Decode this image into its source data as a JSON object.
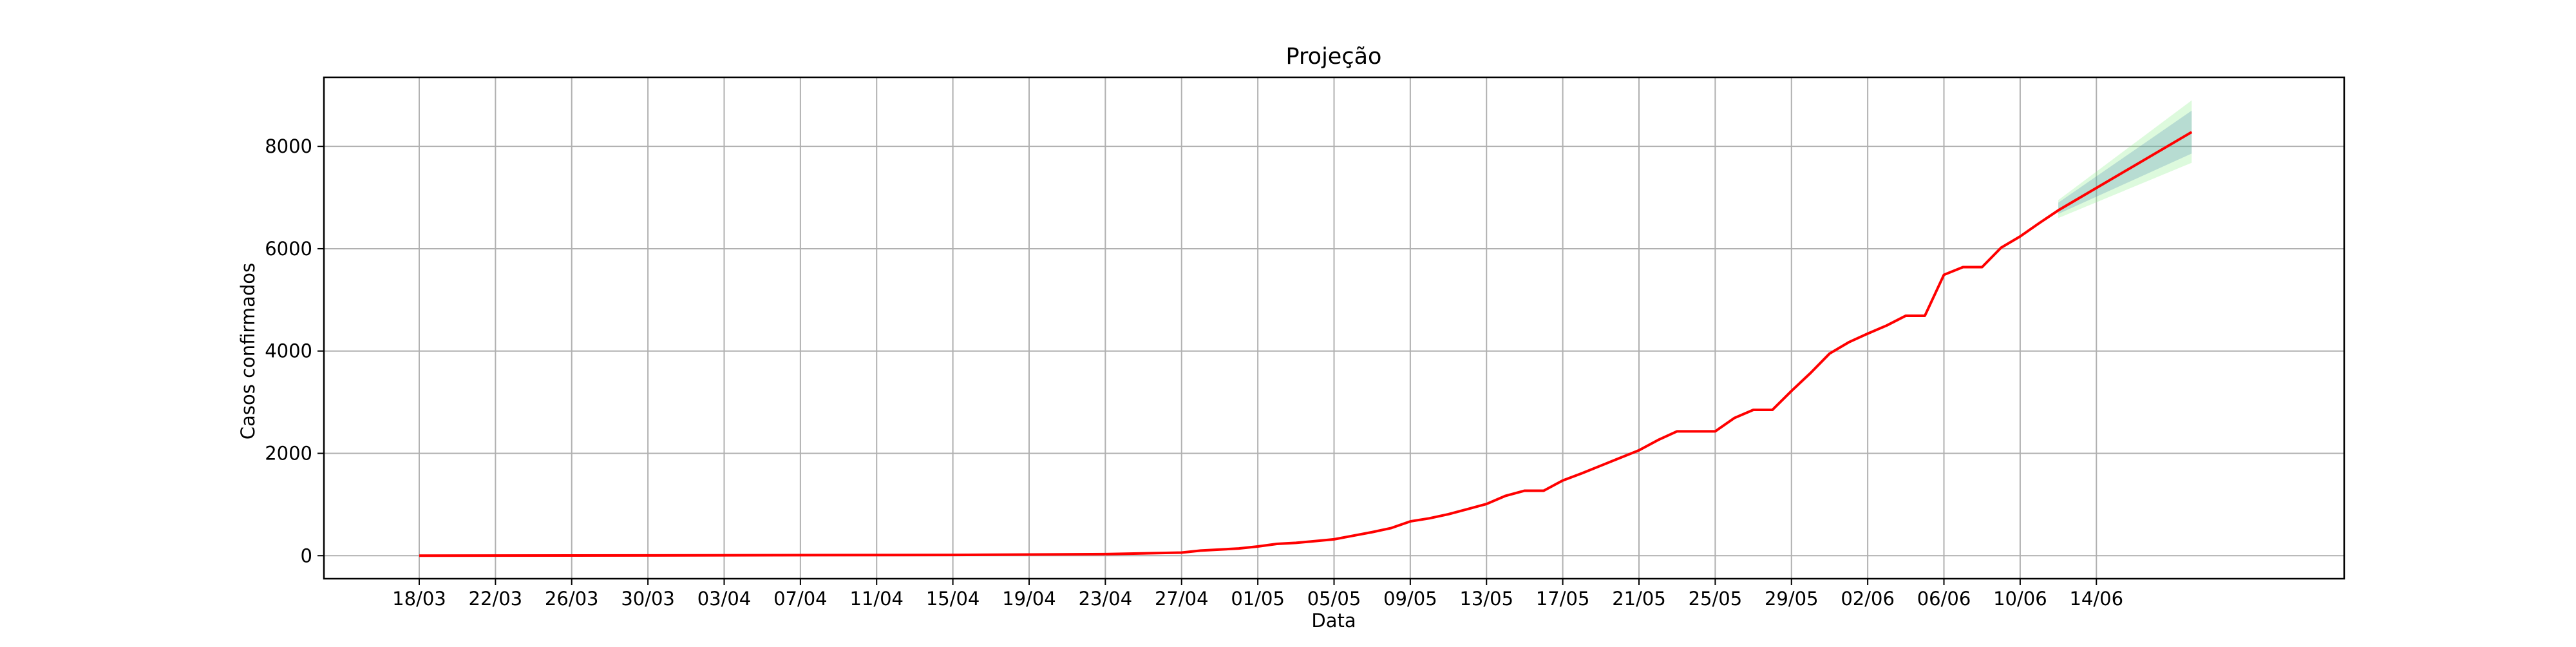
{
  "chart_data": {
    "type": "line",
    "title": "Projeção",
    "xlabel": "Data",
    "ylabel": "Casos confirmados",
    "grid": true,
    "xlim": [
      "2020-03-13",
      "2020-06-27"
    ],
    "ylim": [
      -450,
      9350
    ],
    "x_ticks": [
      "18/03",
      "22/03",
      "26/03",
      "30/03",
      "03/04",
      "07/04",
      "11/04",
      "15/04",
      "19/04",
      "23/04",
      "27/04",
      "01/05",
      "05/05",
      "09/05",
      "13/05",
      "17/05",
      "21/05",
      "25/05",
      "29/05",
      "02/06",
      "06/06",
      "10/06",
      "14/06"
    ],
    "y_ticks": [
      "0",
      "2000",
      "4000",
      "6000",
      "8000"
    ],
    "series": [
      {
        "color": "#ff0000",
        "points": [
          [
            "2020-03-18",
            0
          ],
          [
            "2020-03-30",
            5
          ],
          [
            "2020-04-15",
            15
          ],
          [
            "2020-04-23",
            30
          ],
          [
            "2020-04-27",
            60
          ],
          [
            "2020-04-28",
            100
          ],
          [
            "2020-04-30",
            140
          ],
          [
            "2020-05-01",
            180
          ],
          [
            "2020-05-02",
            230
          ],
          [
            "2020-05-03",
            250
          ],
          [
            "2020-05-05",
            320
          ],
          [
            "2020-05-06",
            390
          ],
          [
            "2020-05-07",
            460
          ],
          [
            "2020-05-08",
            540
          ],
          [
            "2020-05-09",
            670
          ],
          [
            "2020-05-10",
            730
          ],
          [
            "2020-05-11",
            810
          ],
          [
            "2020-05-12",
            910
          ],
          [
            "2020-05-13",
            1010
          ],
          [
            "2020-05-14",
            1170
          ],
          [
            "2020-05-15",
            1270
          ],
          [
            "2020-05-16",
            1270
          ],
          [
            "2020-05-17",
            1470
          ],
          [
            "2020-05-18",
            1610
          ],
          [
            "2020-05-19",
            1760
          ],
          [
            "2020-05-20",
            1910
          ],
          [
            "2020-05-21",
            2060
          ],
          [
            "2020-05-22",
            2260
          ],
          [
            "2020-05-23",
            2430
          ],
          [
            "2020-05-25",
            2430
          ],
          [
            "2020-05-26",
            2690
          ],
          [
            "2020-05-27",
            2850
          ],
          [
            "2020-05-28",
            2850
          ],
          [
            "2020-05-29",
            3220
          ],
          [
            "2020-05-30",
            3570
          ],
          [
            "2020-05-31",
            3950
          ],
          [
            "2020-06-01",
            4170
          ],
          [
            "2020-06-02",
            4340
          ],
          [
            "2020-06-03",
            4500
          ],
          [
            "2020-06-04",
            4690
          ],
          [
            "2020-06-05",
            4690
          ],
          [
            "2020-06-06",
            5490
          ],
          [
            "2020-06-07",
            5640
          ],
          [
            "2020-06-08",
            5640
          ],
          [
            "2020-06-09",
            6020
          ],
          [
            "2020-06-10",
            6240
          ],
          [
            "2020-06-11",
            6500
          ],
          [
            "2020-06-12",
            6750
          ],
          [
            "2020-06-19",
            8280
          ]
        ]
      }
    ],
    "bands": [
      {
        "color": "#90ee90",
        "opacity": 0.3,
        "points": [
          [
            "2020-06-12",
            6600,
            6950
          ],
          [
            "2020-06-19",
            7680,
            8900
          ]
        ]
      },
      {
        "color": "#4682b4",
        "opacity": 0.25,
        "points": [
          [
            "2020-06-12",
            6680,
            6900
          ],
          [
            "2020-06-19",
            7860,
            8700
          ]
        ]
      }
    ]
  }
}
